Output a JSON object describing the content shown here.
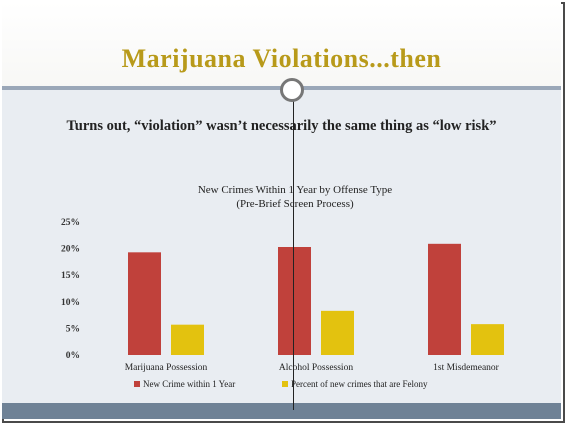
{
  "slide": {
    "title": "Marijuana Violations...then",
    "subtitle": "Turns out, “violation” wasn’t necessarily the same thing as “low risk”"
  },
  "chart_data": {
    "type": "bar",
    "title": "New Crimes Within 1 Year by Offense Type",
    "subtitle": "(Pre-Brief Screen Process)",
    "categories": [
      "Marijuana Possession",
      "Alcohol Possession",
      "1st Misdemeanor"
    ],
    "series": [
      {
        "name": "New Crime within 1 Year",
        "color": "#c0413b",
        "values": [
          19.3,
          20.3,
          20.9
        ]
      },
      {
        "name": "Percent of new crimes that are Felony",
        "color": "#e3c20f",
        "values": [
          5.7,
          8.3,
          5.8
        ]
      }
    ],
    "yticks": [
      "0%",
      "5%",
      "10%",
      "15%",
      "20%",
      "25%"
    ],
    "ylim": [
      0,
      25
    ],
    "grid": false,
    "legend": "bottom"
  }
}
